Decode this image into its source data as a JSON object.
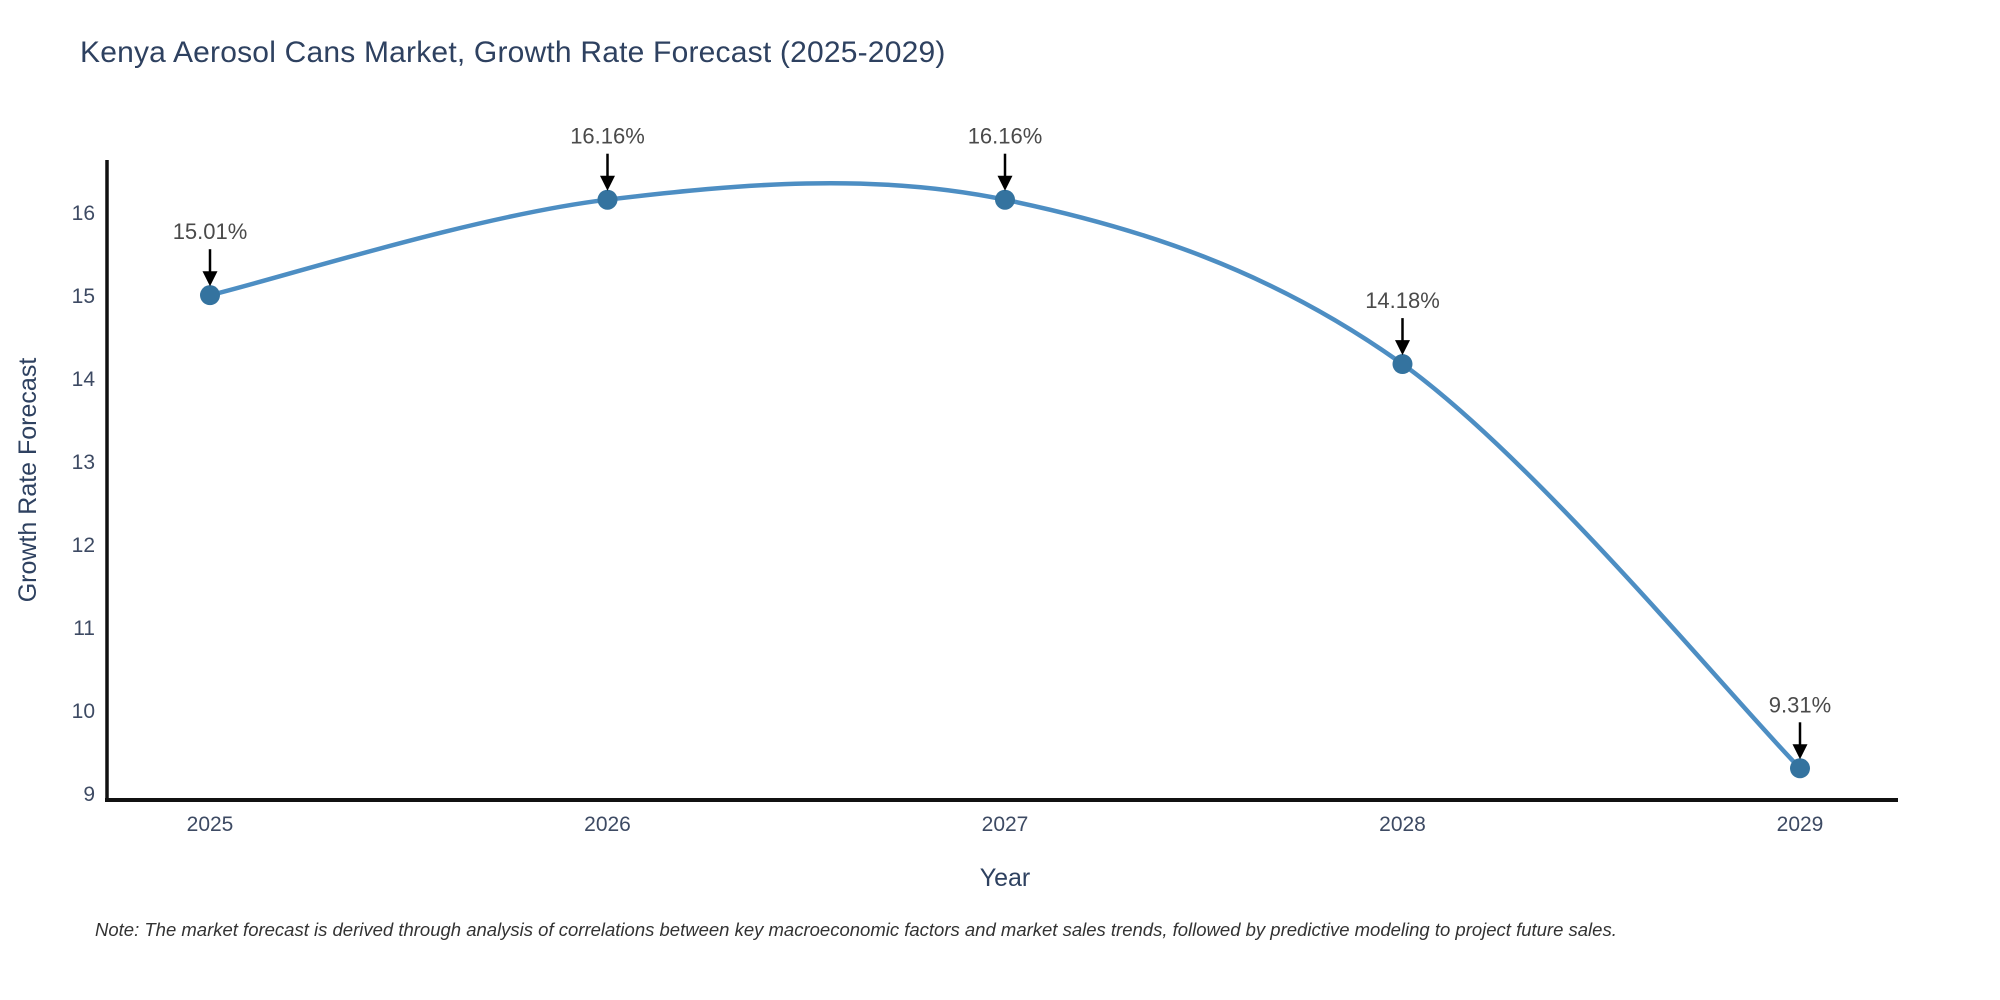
{
  "page": {
    "background": "#ffffff"
  },
  "footnote": "Note: The market forecast is derived through analysis of correlations between key macroeconomic factors and market sales trends, followed by predictive modeling to project future sales.",
  "chart_data": {
    "type": "line",
    "title": "Kenya Aerosol Cans Market, Growth Rate Forecast (2025-2029)",
    "xlabel": "Year",
    "ylabel": "Growth Rate Forecast",
    "categories": [
      "2025",
      "2026",
      "2027",
      "2028",
      "2029"
    ],
    "series": [
      {
        "name": "Growth Rate Forecast",
        "values": [
          15.01,
          16.16,
          16.16,
          14.18,
          9.31
        ]
      }
    ],
    "point_labels": [
      "15.01%",
      "16.16%",
      "16.16%",
      "14.18%",
      "9.31%"
    ],
    "yticks": [
      9,
      10,
      11,
      12,
      13,
      14,
      15,
      16
    ],
    "ylim": [
      8.9,
      16.7
    ],
    "line_shape": "spline",
    "markers": "circle",
    "grid": false,
    "legend": "none",
    "annotation_style": "value label with down-arrow to each point",
    "colors": {
      "line": "#4d8ec3",
      "marker": "#34739f",
      "annotation_text": "#4a4a4a",
      "arrow": "#000000",
      "axis_line": "#111111",
      "tick_text": "#3d4a63",
      "title_text": "#2e4160"
    }
  }
}
